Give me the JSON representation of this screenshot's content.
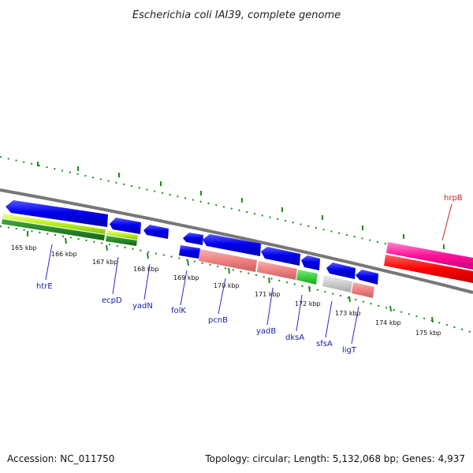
{
  "header": {
    "title": "Escherichia coli IAI39, complete genome"
  },
  "footer": {
    "accession": "Accession: NC_011750",
    "summary": "Topology: circular; Length: 5,132,068 bp; Genes: 4,937"
  },
  "scale": {
    "ticks": [
      "165 kbp",
      "166 kbp",
      "167 kbp",
      "168 kbp",
      "169 kbp",
      "170 kbp",
      "171 kbp",
      "172 kbp",
      "173 kbp",
      "174 kbp",
      "175 kbp"
    ]
  },
  "genes": [
    {
      "name": "htrE"
    },
    {
      "name": "ecpD"
    },
    {
      "name": "yadN"
    },
    {
      "name": "folK"
    },
    {
      "name": "pcnB"
    },
    {
      "name": "yadB"
    },
    {
      "name": "dksA"
    },
    {
      "name": "sfsA"
    },
    {
      "name": "ligT"
    },
    {
      "name": "hrpB"
    }
  ],
  "colors": {
    "cds": "#0a0ae0",
    "rna_light": "#ee8888",
    "green": "#22cc22",
    "gray": "#c8c8c8",
    "pink": "#ff22aa",
    "red": "#ff0000",
    "tick_green": "#228822",
    "backbone": "#888888"
  }
}
